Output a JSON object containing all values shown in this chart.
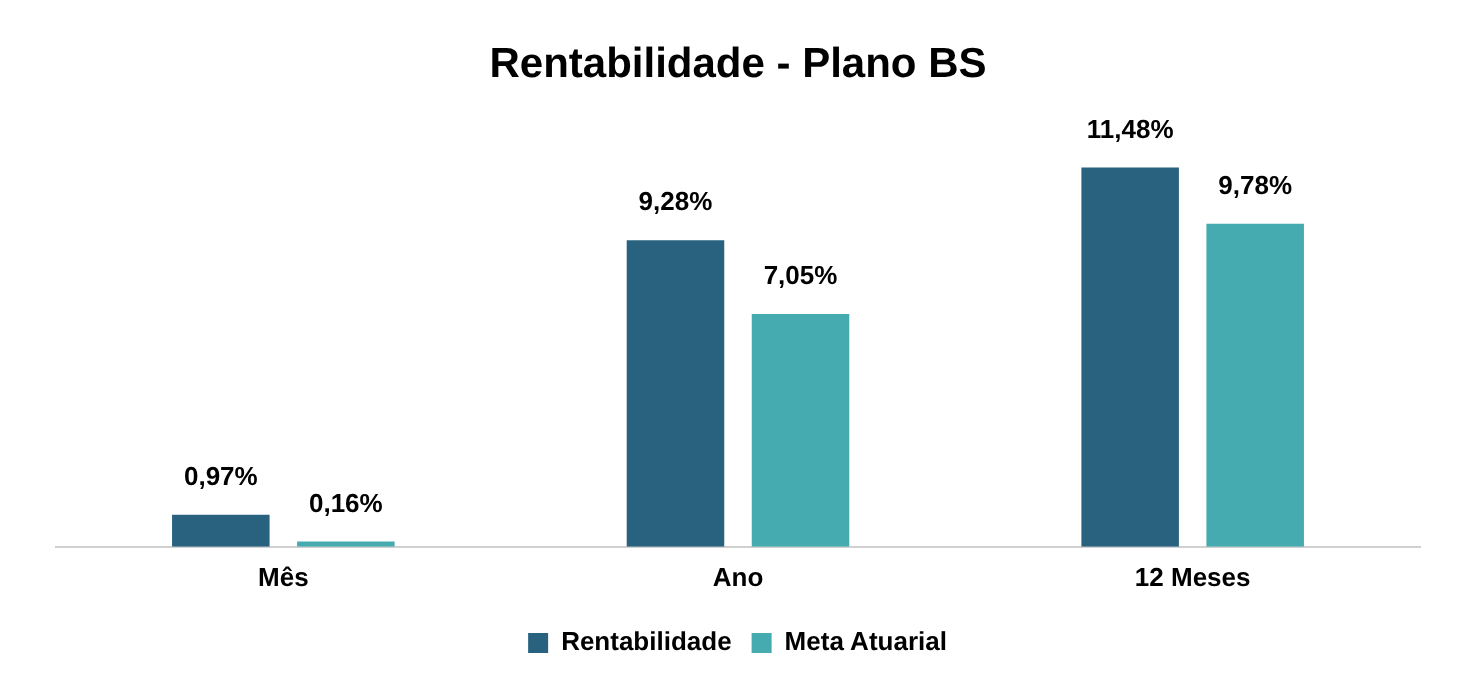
{
  "chart_data": {
    "type": "bar",
    "title": "Rentabilidade - Plano BS",
    "categories": [
      "Mês",
      "Ano",
      "12 Meses"
    ],
    "series": [
      {
        "name": "Rentabilidade",
        "color": "#28627f",
        "values": [
          0.97,
          9.28,
          11.48
        ],
        "value_labels": [
          "0,97%",
          "9,28%",
          "11,48%"
        ]
      },
      {
        "name": "Meta Atuarial",
        "color": "#45abb0",
        "values": [
          0.16,
          7.05,
          9.78
        ],
        "value_labels": [
          "0,16%",
          "7,05%",
          "9,78%"
        ]
      }
    ],
    "legend": "bottom",
    "grid": false
  }
}
